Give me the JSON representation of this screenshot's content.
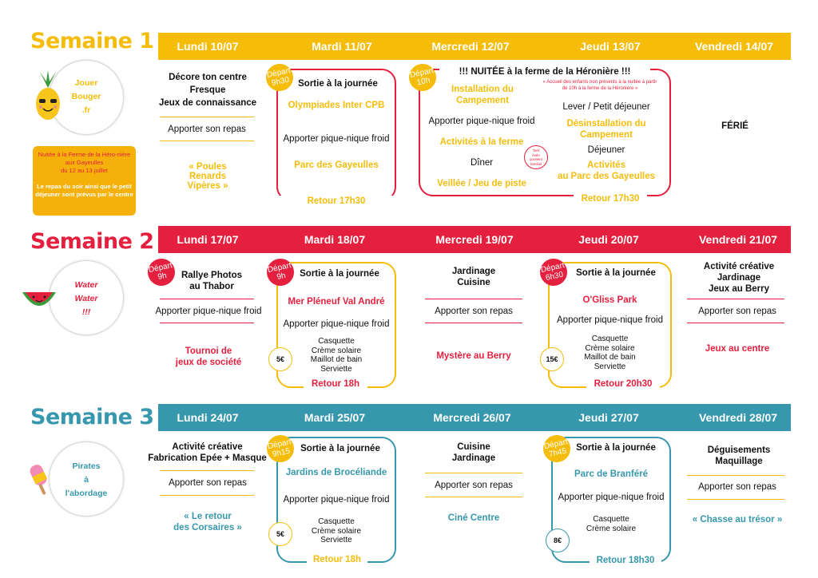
{
  "colors": {
    "yellow": "#f5bd0a",
    "red": "#e5203e",
    "blue": "#3798ad"
  },
  "w1": {
    "title": "Semaine 1",
    "days": [
      "Lundi 10/07",
      "Mardi 11/07",
      "Mercredi 12/07",
      "Jeudi 13/07",
      "Vendredi 14/07"
    ],
    "circle": "Jouer\nBouger\n.fr",
    "note": "Nuitée à la Ferme de la Héro-nière aux Gayeulles\ndu 12 au 13 juillet",
    "note2": "Le repas du soir ainsi que le petit déjeuner sont prévus par le centre",
    "mon": {
      "act": "Décore ton centre\nFresque\nJeux de connaissance",
      "meal": "Apporter son repas",
      "game": "« Poules\nRenards\nVipères »"
    },
    "tue": {
      "badge": "Départ\n9h30",
      "title": "Sortie à la journée",
      "act": "Olympiades Inter CPB",
      "meal": "Apporter pique-nique froid",
      "act2": "Parc des Gayeulles",
      "ret": "Retour 17h30"
    },
    "wed": {
      "badge": "Départ\n10h",
      "title": "!!! NUITÉE à la ferme de la Héronière !!!",
      "a1": "Installation du\nCampement",
      "meal": "Apporter pique-nique froid",
      "a2": "Activités à la ferme",
      "dinner": "Dîner",
      "a3": "Veillée / Jeu de piste",
      "late": "Tarif\névén\nquotient\nfamilial",
      "ret": "Retour 17h30"
    },
    "thu": {
      "notice": "« Accueil des enfants non présents à la nuitée à partir de 10h à la ferme de la Héronière »",
      "l1": "Lever / Petit déjeuner",
      "a1": "Désinstallation du\nCampement",
      "lunch": "Déjeuner",
      "a2": "Activités\nau Parc des Gayeulles"
    },
    "fri": {
      "act": "FÉRIÉ"
    }
  },
  "w2": {
    "title": "Semaine 2",
    "days": [
      "Lundi 17/07",
      "Mardi 18/07",
      "Mercredi 19/07",
      "Jeudi 20/07",
      "Vendredi 21/07"
    ],
    "circle": "Water\nWater\n!!!",
    "mon": {
      "badge": "Départ\n9h",
      "act": "Rallye Photos\nau Thabor",
      "meal": "Apporter pique-nique froid",
      "game": "Tournoi de\njeux de société"
    },
    "tue": {
      "badge": "Départ\n9h",
      "title": "Sortie à la journée",
      "act": "Mer Pléneuf Val André",
      "meal": "Apporter pique-nique froid",
      "items": "Casquette\nCrème solaire\nMaillot de bain\nServiette",
      "price": "5€",
      "ret": "Retour 18h"
    },
    "wed": {
      "act": "Jardinage\nCuisine",
      "meal": "Apporter son repas",
      "game": "Mystère au Berry"
    },
    "thu": {
      "badge": "Départ\n6h30",
      "title": "Sortie à la journée",
      "act": "O'Gliss Park",
      "meal": "Apporter pique-nique froid",
      "items": "Casquette\nCrème solaire\nMaillot de bain\nServiette",
      "price": "15€",
      "ret": "Retour 20h30"
    },
    "fri": {
      "act": "Activité créative\nJardinage\nJeux au Berry",
      "meal": "Apporter son repas",
      "game": "Jeux au centre"
    }
  },
  "w3": {
    "title": "Semaine 3",
    "days": [
      "Lundi 24/07",
      "Mardi 25/07",
      "Mercredi 26/07",
      "Jeudi 27/07",
      "Vendredi 28/07"
    ],
    "circle": "Pirates\nà\nl'abordage",
    "mon": {
      "act": "Activité créative\nFabrication Epée + Masque",
      "meal": "Apporter son repas",
      "game": "« Le retour\ndes Corsaires »"
    },
    "tue": {
      "badge": "Départ\n9h15",
      "title": "Sortie à la journée",
      "act": "Jardins de Brocéliande",
      "meal": "Apporter pique-nique froid",
      "items": "Casquette\nCrème solaire\nServiette",
      "price": "5€",
      "ret": "Retour 18h"
    },
    "wed": {
      "act": "Cuisine\nJardinage",
      "meal": "Apporter son repas",
      "game": "Ciné Centre"
    },
    "thu": {
      "badge": "Départ\n7h45",
      "title": "Sortie à la journée",
      "act": "Parc de Branféré",
      "meal": "Apporter pique-nique froid",
      "items": "Casquette\nCrème solaire",
      "price": "8€",
      "ret": "Retour 18h30"
    },
    "fri": {
      "act": "Déguisements\nMaquillage",
      "meal": "Apporter son repas",
      "game": "« Chasse au trésor »"
    }
  }
}
